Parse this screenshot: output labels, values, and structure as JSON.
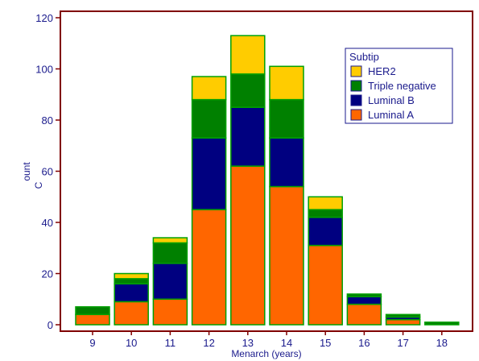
{
  "chart_data": {
    "type": "bar",
    "stacked": true,
    "categories": [
      "9",
      "10",
      "11",
      "12",
      "13",
      "14",
      "15",
      "16",
      "17",
      "18"
    ],
    "series": [
      {
        "name": "Luminal A",
        "color": "#ff6600",
        "values": [
          4,
          9,
          10,
          45,
          62,
          54,
          31,
          8,
          2,
          0
        ]
      },
      {
        "name": "Luminal B",
        "color": "#000080",
        "values": [
          0,
          7,
          14,
          28,
          23,
          19,
          11,
          3,
          1,
          0
        ]
      },
      {
        "name": "Triple negative",
        "color": "#008000",
        "values": [
          3,
          2,
          8,
          15,
          13,
          15,
          3,
          1,
          1,
          1
        ]
      },
      {
        "name": "HER2",
        "color": "#ffcc00",
        "values": [
          0,
          2,
          2,
          9,
          15,
          13,
          5,
          0,
          0,
          0
        ]
      }
    ],
    "xlabel": "Menarch (years)",
    "ylabel_parts": [
      "C",
      "ount"
    ],
    "ylim": [
      0,
      120
    ],
    "yticks": [
      0,
      20,
      40,
      60,
      80,
      100,
      120
    ],
    "bar_outline_color": "#00a000",
    "axis_color": "#800000",
    "legend": {
      "title": "Subtip",
      "placement": "top-right",
      "order": [
        "HER2",
        "Triple negative",
        "Luminal B",
        "Luminal A"
      ]
    }
  }
}
